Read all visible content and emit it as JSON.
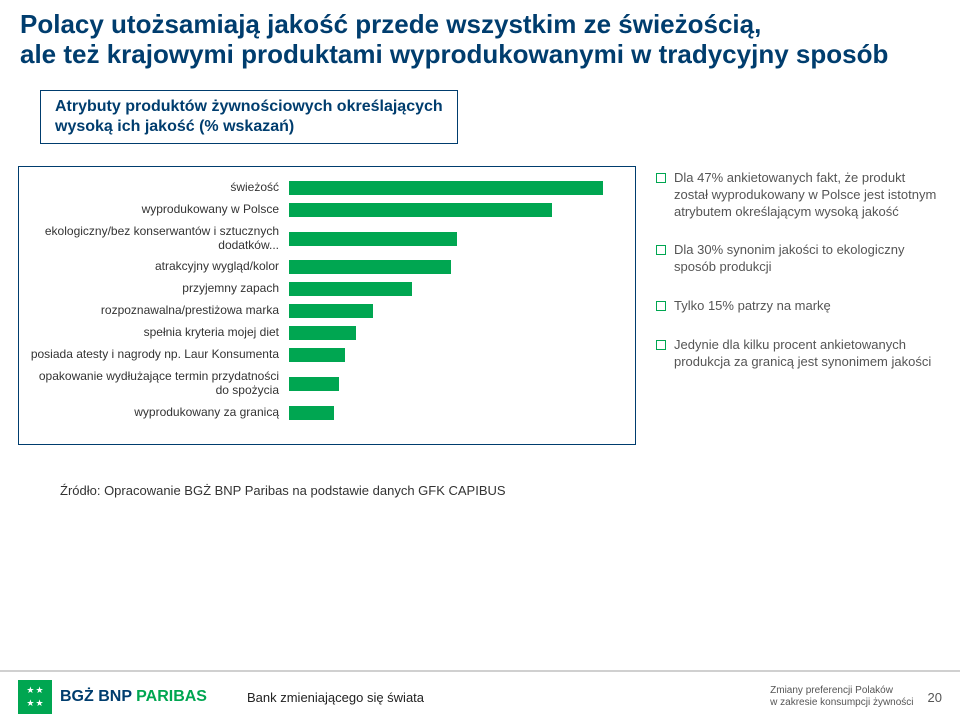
{
  "title_line1": "Polacy utożsamiają jakość przede wszystkim ze świeżością,",
  "title_line2": "ale też krajowymi produktami wyprodukowanymi w tradycyjny sposób",
  "sub1": "Atrybuty produktów żywnościowych określających",
  "sub2": "wysoką ich jakość (% wskazań)",
  "chart": {
    "type": "bar",
    "orientation": "horizontal",
    "bar_color": "#00a651",
    "label_fontsize": 12,
    "xlim": [
      0,
      60
    ],
    "rows": [
      {
        "label": "świeżość",
        "value": 56
      },
      {
        "label": "wyprodukowany w Polsce",
        "value": 47
      },
      {
        "label": "ekologiczny/bez konserwantów i sztucznych dodatków...",
        "value": 30
      },
      {
        "label": "atrakcyjny wygląd/kolor",
        "value": 29
      },
      {
        "label": "przyjemny zapach",
        "value": 22
      },
      {
        "label": "rozpoznawalna/prestiżowa marka",
        "value": 15
      },
      {
        "label": "spełnia kryteria mojej diet",
        "value": 12
      },
      {
        "label": "posiada atesty i nagrody np. Laur Konsumenta",
        "value": 10
      },
      {
        "label": "opakowanie wydłużające termin przydatności do spożycia",
        "value": 9
      },
      {
        "label": "wyprodukowany za granicą",
        "value": 8
      }
    ]
  },
  "bullets": [
    "Dla 47% ankietowanych fakt, że produkt został wyprodukowany w Polsce jest istotnym atrybutem określającym wysoką jakość",
    "Dla 30% synonim jakości to ekologiczny sposób produkcji",
    "Tylko 15% patrzy na markę",
    "Jedynie dla kilku procent ankietowanych produkcja za granicą jest synonimem jakości"
  ],
  "source": "Źródło: Opracowanie BGŻ BNP Paribas na podstawie danych GFK CAPIBUS",
  "footer": {
    "bank_a": "BGŻ BNP ",
    "bank_b": "PARIBAS",
    "slogan": "Bank zmieniającego się świata",
    "doc1": "Zmiany preferencji Polaków",
    "doc2": "w zakresie konsumpcji żywności",
    "page": "20"
  }
}
